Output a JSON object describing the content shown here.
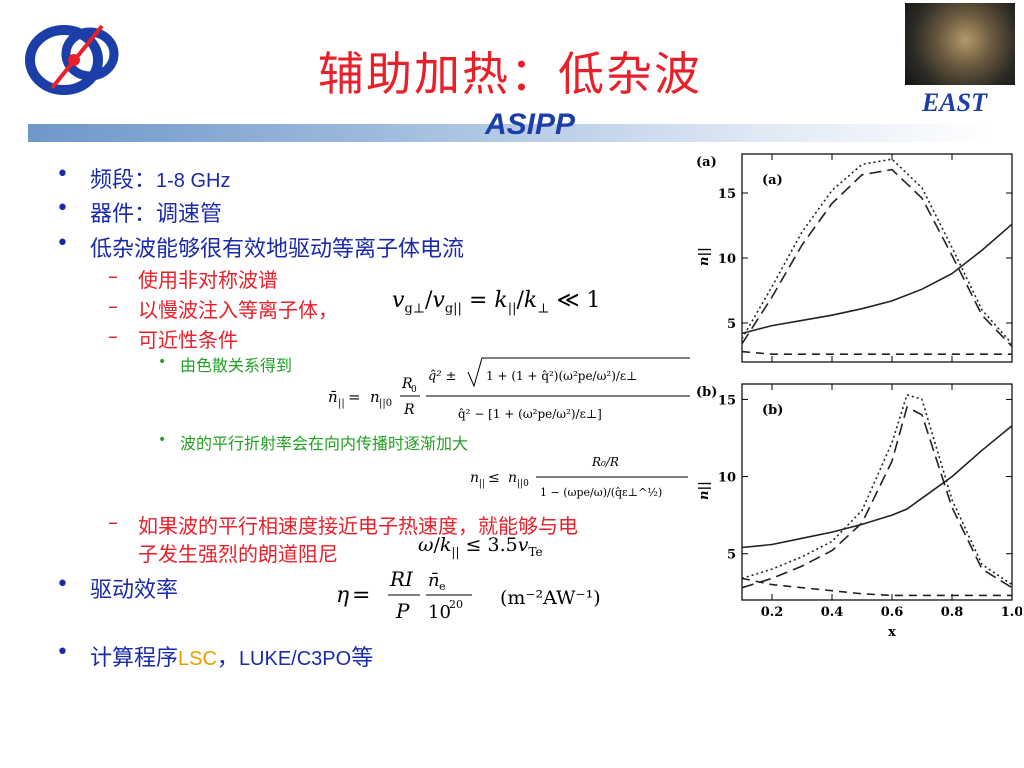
{
  "header": {
    "title": "辅助加热：低杂波",
    "subtitle": "ASIPP",
    "east_label": "EAST"
  },
  "bullets": {
    "b1_label": "频段：",
    "b1_value": "1-8 GHz",
    "b2": "器件：调速管",
    "b3": "低杂波能够很有效地驱动等离子体电流",
    "b3_sub1": "使用非对称波谱",
    "b3_sub2": "以慢波注入等离子体，",
    "b3_sub3": "可近性条件",
    "b3_sub3_a": "由色散关系得到",
    "b3_sub3_b": "波的平行折射率会在向内传播时逐渐加大",
    "b3_sub4_line1": "如果波的平行相速度接近电子热速度，就能够与电",
    "b3_sub4_line2": "子发生强烈的朗道阻尼",
    "b4": "驱动效率",
    "b5_prefix": "计算程序",
    "b5_lsc": "LSC",
    "b5_sep": "，",
    "b5_codes": "LUKE/C3PO",
    "b5_suffix": "等"
  },
  "formulas": {
    "slow_wave": "v_g⊥/v_g|| = k||/k⊥ ≪ 1",
    "landau": "ω/k|| ≤ 3.5v_Te",
    "efficiency_unit": "(m⁻²AW⁻¹)"
  },
  "chart_data": [
    {
      "type": "line",
      "panel_label": "(a)",
      "inner_label": "(a)",
      "ylabel": "n||",
      "xlabel": "x",
      "xlim": [
        0.1,
        1.0
      ],
      "ylim": [
        2,
        18
      ],
      "yticks": [
        5,
        10,
        15
      ],
      "x": [
        0.1,
        0.2,
        0.3,
        0.4,
        0.5,
        0.6,
        0.7,
        0.8,
        0.9,
        1.0
      ],
      "series": [
        {
          "style": "solid",
          "values": [
            4.2,
            4.8,
            5.2,
            5.6,
            6.1,
            6.7,
            7.6,
            8.8,
            10.6,
            12.6
          ]
        },
        {
          "style": "dashed",
          "values": [
            3.4,
            7.0,
            11.0,
            14.2,
            16.4,
            16.8,
            14.6,
            10.2,
            5.6,
            3.2
          ]
        },
        {
          "style": "dotted",
          "values": [
            3.8,
            7.8,
            12.0,
            15.2,
            17.2,
            17.6,
            15.4,
            10.8,
            6.0,
            3.4
          ]
        },
        {
          "style": "dashed-low",
          "values": [
            2.8,
            2.6,
            2.6,
            2.6,
            2.6,
            2.6,
            2.6,
            2.6,
            2.6,
            2.6
          ]
        }
      ]
    },
    {
      "type": "line",
      "panel_label": "(b)",
      "inner_label": "(b)",
      "ylabel": "n||",
      "xlabel": "x",
      "xlim": [
        0.1,
        1.0
      ],
      "xticks": [
        "0.2",
        "0.4",
        "0.6",
        "0.8",
        "1.0"
      ],
      "ylim": [
        2,
        16
      ],
      "yticks": [
        5,
        10,
        15
      ],
      "x": [
        0.1,
        0.2,
        0.3,
        0.4,
        0.5,
        0.6,
        0.65,
        0.7,
        0.8,
        0.9,
        1.0
      ],
      "series": [
        {
          "style": "solid",
          "values": [
            5.4,
            5.6,
            6.0,
            6.4,
            6.9,
            7.5,
            7.9,
            8.6,
            10.0,
            11.7,
            13.3
          ]
        },
        {
          "style": "dashed",
          "values": [
            2.8,
            3.4,
            4.2,
            5.2,
            7.0,
            11.0,
            14.5,
            14.0,
            8.0,
            4.0,
            2.8
          ]
        },
        {
          "style": "dotted",
          "values": [
            3.4,
            4.0,
            4.8,
            5.8,
            7.8,
            12.2,
            15.3,
            15.0,
            8.5,
            4.3,
            3.0
          ]
        },
        {
          "style": "dashed-low",
          "values": [
            3.4,
            3.0,
            2.8,
            2.6,
            2.4,
            2.3,
            2.3,
            2.3,
            2.3,
            2.3,
            2.3
          ]
        }
      ]
    }
  ]
}
